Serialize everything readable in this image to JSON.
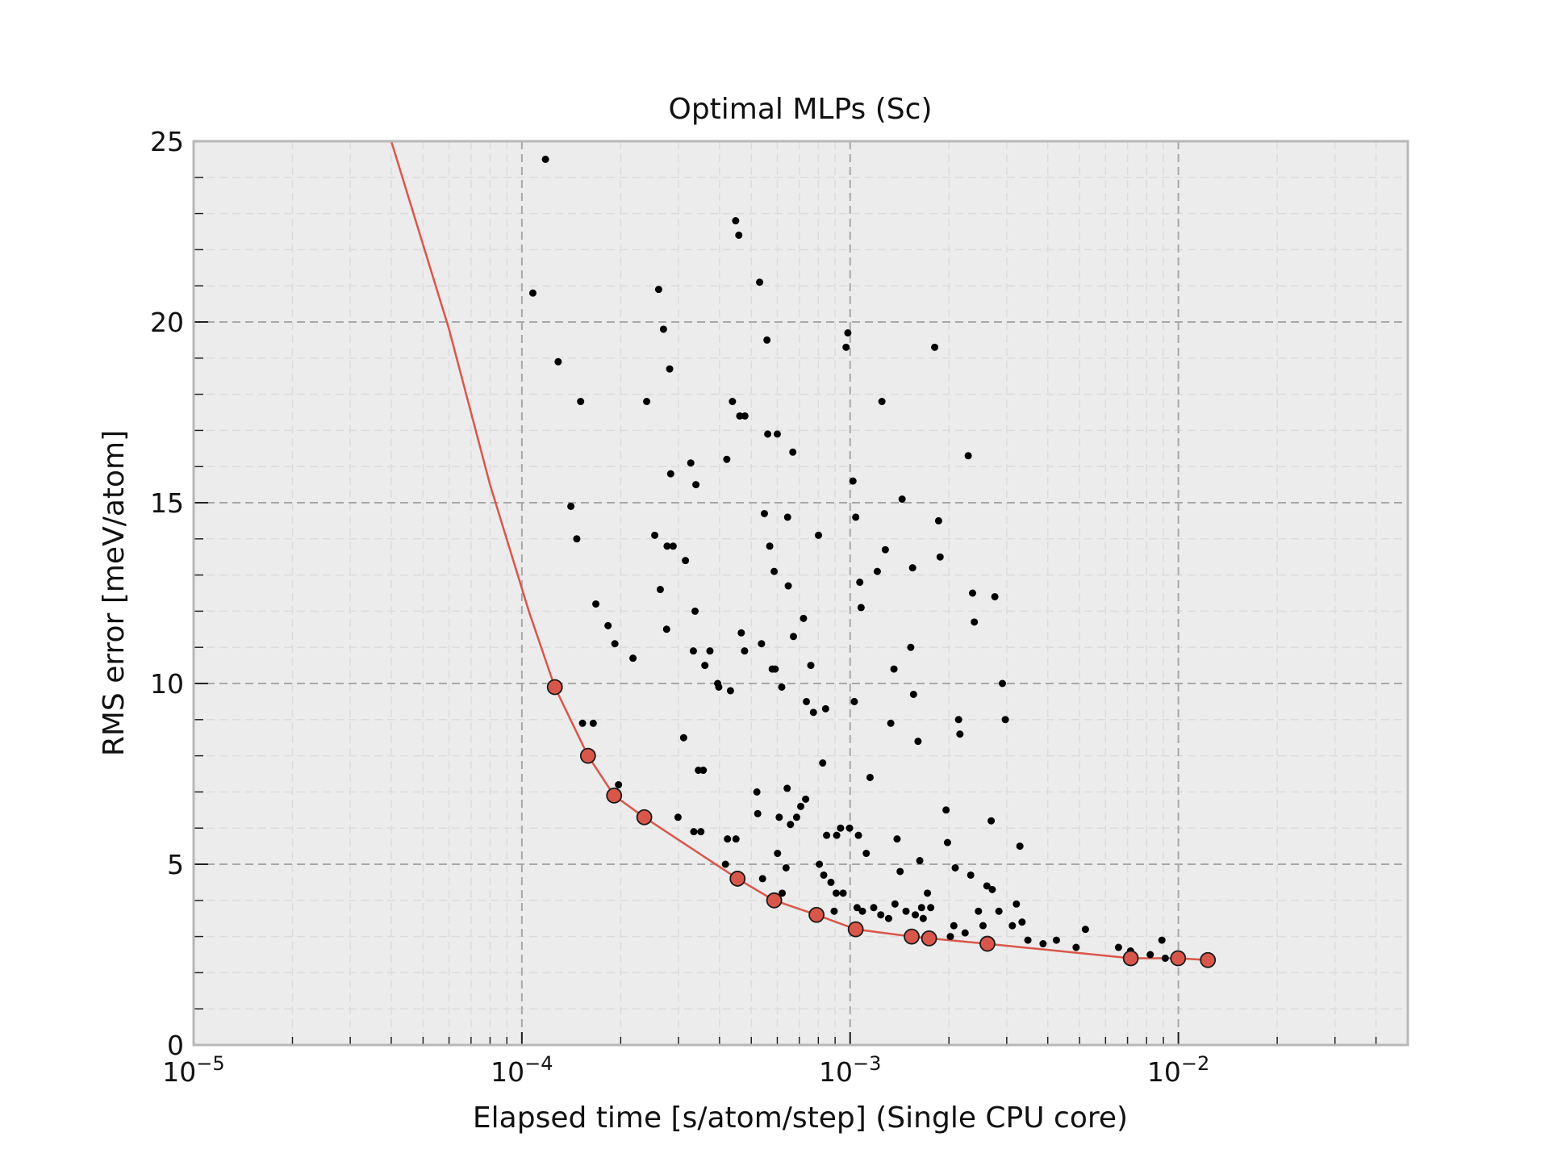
{
  "chart_data": {
    "type": "scatter",
    "title": "Optimal MLPs (Sc)",
    "xlabel": "Elapsed time [s/atom/step] (Single CPU core)",
    "ylabel": "RMS error [meV/atom]",
    "x_scale": "log",
    "xlim": [
      1e-05,
      0.05
    ],
    "ylim": [
      0,
      25
    ],
    "grid": true,
    "x_ticks": [
      {
        "value": 1e-05,
        "base": "10",
        "exp": "−5"
      },
      {
        "value": 0.0001,
        "base": "10",
        "exp": "−4"
      },
      {
        "value": 0.001,
        "base": "10",
        "exp": "−3"
      },
      {
        "value": 0.01,
        "base": "10",
        "exp": "−2"
      }
    ],
    "y_ticks": [
      {
        "value": 0,
        "label": "0"
      },
      {
        "value": 5,
        "label": "5"
      },
      {
        "value": 10,
        "label": "10"
      },
      {
        "value": 15,
        "label": "15"
      },
      {
        "value": 20,
        "label": "20"
      },
      {
        "value": 25,
        "label": "25"
      }
    ],
    "colors": {
      "background": "#ececec",
      "points": "#000000",
      "pareto": "#d9574a",
      "grid_major": "#a8a8a8",
      "grid_minor": "#dcdcdc",
      "frame": "#b8b8b8"
    },
    "series": [
      {
        "marker": "dot",
        "points": [
          [
            0.000108,
            20.8
          ],
          [
            0.000118,
            24.5
          ],
          [
            0.000129,
            18.9
          ],
          [
            0.000141,
            14.9
          ],
          [
            0.000147,
            14.0
          ],
          [
            0.000151,
            17.8
          ],
          [
            0.000153,
            8.9
          ],
          [
            0.000165,
            8.9
          ],
          [
            0.000168,
            12.2
          ],
          [
            0.000183,
            11.6
          ],
          [
            0.000192,
            11.1
          ],
          [
            0.000197,
            7.2
          ],
          [
            0.000218,
            10.7
          ],
          [
            0.00024,
            17.8
          ],
          [
            0.000254,
            14.1
          ],
          [
            0.000261,
            20.9
          ],
          [
            0.000264,
            12.6
          ],
          [
            0.00027,
            19.8
          ],
          [
            0.000276,
            11.5
          ],
          [
            0.000277,
            13.8
          ],
          [
            0.000282,
            18.7
          ],
          [
            0.000284,
            15.8
          ],
          [
            0.000289,
            13.8
          ],
          [
            0.000299,
            6.3
          ],
          [
            0.000311,
            8.5
          ],
          [
            0.000315,
            13.4
          ],
          [
            0.000327,
            16.1
          ],
          [
            0.000333,
            10.9
          ],
          [
            0.000334,
            5.9
          ],
          [
            0.000337,
            12.0
          ],
          [
            0.000339,
            15.5
          ],
          [
            0.000345,
            7.6
          ],
          [
            0.000351,
            5.9
          ],
          [
            0.000357,
            7.6
          ],
          [
            0.000361,
            10.5
          ],
          [
            0.000374,
            10.9
          ],
          [
            0.000395,
            10.0
          ],
          [
            0.000398,
            9.9
          ],
          [
            0.000417,
            5.0
          ],
          [
            0.000421,
            16.2
          ],
          [
            0.000423,
            5.7
          ],
          [
            0.000432,
            9.8
          ],
          [
            0.000438,
            17.8
          ],
          [
            0.000448,
            22.8
          ],
          [
            0.000449,
            5.7
          ],
          [
            0.000458,
            22.4
          ],
          [
            0.000461,
            17.4
          ],
          [
            0.000466,
            11.4
          ],
          [
            0.000477,
            10.9
          ],
          [
            0.000478,
            17.4
          ],
          [
            0.00052,
            7.0
          ],
          [
            0.000523,
            6.4
          ],
          [
            0.00053,
            21.1
          ],
          [
            0.000537,
            11.1
          ],
          [
            0.000541,
            4.6
          ],
          [
            0.000548,
            14.7
          ],
          [
            0.000558,
            19.5
          ],
          [
            0.000561,
            16.9
          ],
          [
            0.000569,
            13.8
          ],
          [
            0.000579,
            10.4
          ],
          [
            0.000587,
            13.1
          ],
          [
            0.000591,
            10.4
          ],
          [
            0.0006,
            16.9
          ],
          [
            0.000601,
            5.3
          ],
          [
            0.000608,
            6.3
          ],
          [
            0.000619,
            9.9
          ],
          [
            0.000621,
            4.2
          ],
          [
            0.000638,
            4.9
          ],
          [
            0.000643,
            7.1
          ],
          [
            0.000645,
            14.6
          ],
          [
            0.000648,
            12.7
          ],
          [
            0.000658,
            6.1
          ],
          [
            0.000669,
            16.4
          ],
          [
            0.000672,
            11.3
          ],
          [
            0.000687,
            6.3
          ],
          [
            0.000707,
            6.6
          ],
          [
            0.000721,
            11.8
          ],
          [
            0.000732,
            6.8
          ],
          [
            0.000736,
            9.5
          ],
          [
            0.000759,
            10.5
          ],
          [
            0.000773,
            9.2
          ],
          [
            0.000801,
            14.1
          ],
          [
            0.000806,
            5.0
          ],
          [
            0.000825,
            7.8
          ],
          [
            0.000831,
            4.7
          ],
          [
            0.000842,
            9.3
          ],
          [
            0.000848,
            5.8
          ],
          [
            0.000874,
            4.5
          ],
          [
            0.000894,
            3.7
          ],
          [
            0.000907,
            4.2
          ],
          [
            0.00091,
            5.8
          ],
          [
            0.000935,
            6.0
          ],
          [
            0.000952,
            4.2
          ],
          [
            0.000972,
            19.3
          ],
          [
            0.000984,
            19.7
          ],
          [
            0.000996,
            6.0
          ],
          [
            0.00102,
            15.6
          ],
          [
            0.00103,
            9.5
          ],
          [
            0.00104,
            14.6
          ],
          [
            0.00105,
            3.8
          ],
          [
            0.00106,
            5.8
          ],
          [
            0.00107,
            12.8
          ],
          [
            0.00108,
            12.1
          ],
          [
            0.00109,
            3.7
          ],
          [
            0.00112,
            5.3
          ],
          [
            0.00115,
            7.4
          ],
          [
            0.00118,
            3.8
          ],
          [
            0.00121,
            13.1
          ],
          [
            0.00124,
            3.6
          ],
          [
            0.00125,
            17.8
          ],
          [
            0.00128,
            13.7
          ],
          [
            0.00131,
            3.5
          ],
          [
            0.00133,
            8.9
          ],
          [
            0.00136,
            10.4
          ],
          [
            0.00137,
            3.9
          ],
          [
            0.00139,
            5.7
          ],
          [
            0.00142,
            4.8
          ],
          [
            0.00144,
            15.1
          ],
          [
            0.00148,
            3.7
          ],
          [
            0.00153,
            11.0
          ],
          [
            0.00155,
            13.2
          ],
          [
            0.00156,
            9.7
          ],
          [
            0.00158,
            3.6
          ],
          [
            0.00161,
            8.4
          ],
          [
            0.00163,
            5.1
          ],
          [
            0.00165,
            3.8
          ],
          [
            0.00167,
            3.5
          ],
          [
            0.00172,
            4.2
          ],
          [
            0.00176,
            3.8
          ],
          [
            0.00181,
            19.3
          ],
          [
            0.00186,
            14.5
          ],
          [
            0.00188,
            13.5
          ],
          [
            0.00196,
            6.5
          ],
          [
            0.00198,
            5.6
          ],
          [
            0.00202,
            3.0
          ],
          [
            0.00207,
            3.3
          ],
          [
            0.00209,
            4.9
          ],
          [
            0.00214,
            9.0
          ],
          [
            0.00216,
            8.6
          ],
          [
            0.00224,
            3.1
          ],
          [
            0.00229,
            16.3
          ],
          [
            0.00233,
            4.7
          ],
          [
            0.00236,
            12.5
          ],
          [
            0.00239,
            11.7
          ],
          [
            0.00246,
            3.7
          ],
          [
            0.00254,
            3.3
          ],
          [
            0.00261,
            4.4
          ],
          [
            0.00269,
            6.2
          ],
          [
            0.00271,
            4.3
          ],
          [
            0.00276,
            12.4
          ],
          [
            0.00284,
            3.7
          ],
          [
            0.00291,
            10.0
          ],
          [
            0.00297,
            9.0
          ],
          [
            0.00312,
            3.3
          ],
          [
            0.00321,
            3.9
          ],
          [
            0.00329,
            5.5
          ],
          [
            0.00334,
            3.4
          ],
          [
            0.00348,
            2.9
          ],
          [
            0.00387,
            2.8
          ],
          [
            0.00425,
            2.9
          ],
          [
            0.00488,
            2.7
          ],
          [
            0.00521,
            3.2
          ],
          [
            0.00657,
            2.7
          ],
          [
            0.00715,
            2.6
          ],
          [
            0.00821,
            2.5
          ],
          [
            0.00891,
            2.9
          ],
          [
            0.00912,
            2.4
          ]
        ]
      },
      {
        "marker": "circle",
        "line": true,
        "points": [
          [
            4e-05,
            25.0
          ],
          [
            6e-05,
            19.8
          ],
          [
            8e-05,
            15.5
          ],
          [
            0.000105,
            12.0
          ],
          [
            0.000126,
            9.9
          ],
          [
            0.000159,
            8.0
          ],
          [
            0.000191,
            6.9
          ],
          [
            0.000236,
            6.3
          ],
          [
            0.000454,
            4.6
          ],
          [
            0.000587,
            4.0
          ],
          [
            0.00079,
            3.6
          ],
          [
            0.00104,
            3.2
          ],
          [
            0.00154,
            3.0
          ],
          [
            0.00174,
            2.95
          ],
          [
            0.00262,
            2.8
          ],
          [
            0.00716,
            2.4
          ],
          [
            0.00998,
            2.4
          ],
          [
            0.0123,
            2.35
          ]
        ]
      }
    ]
  }
}
